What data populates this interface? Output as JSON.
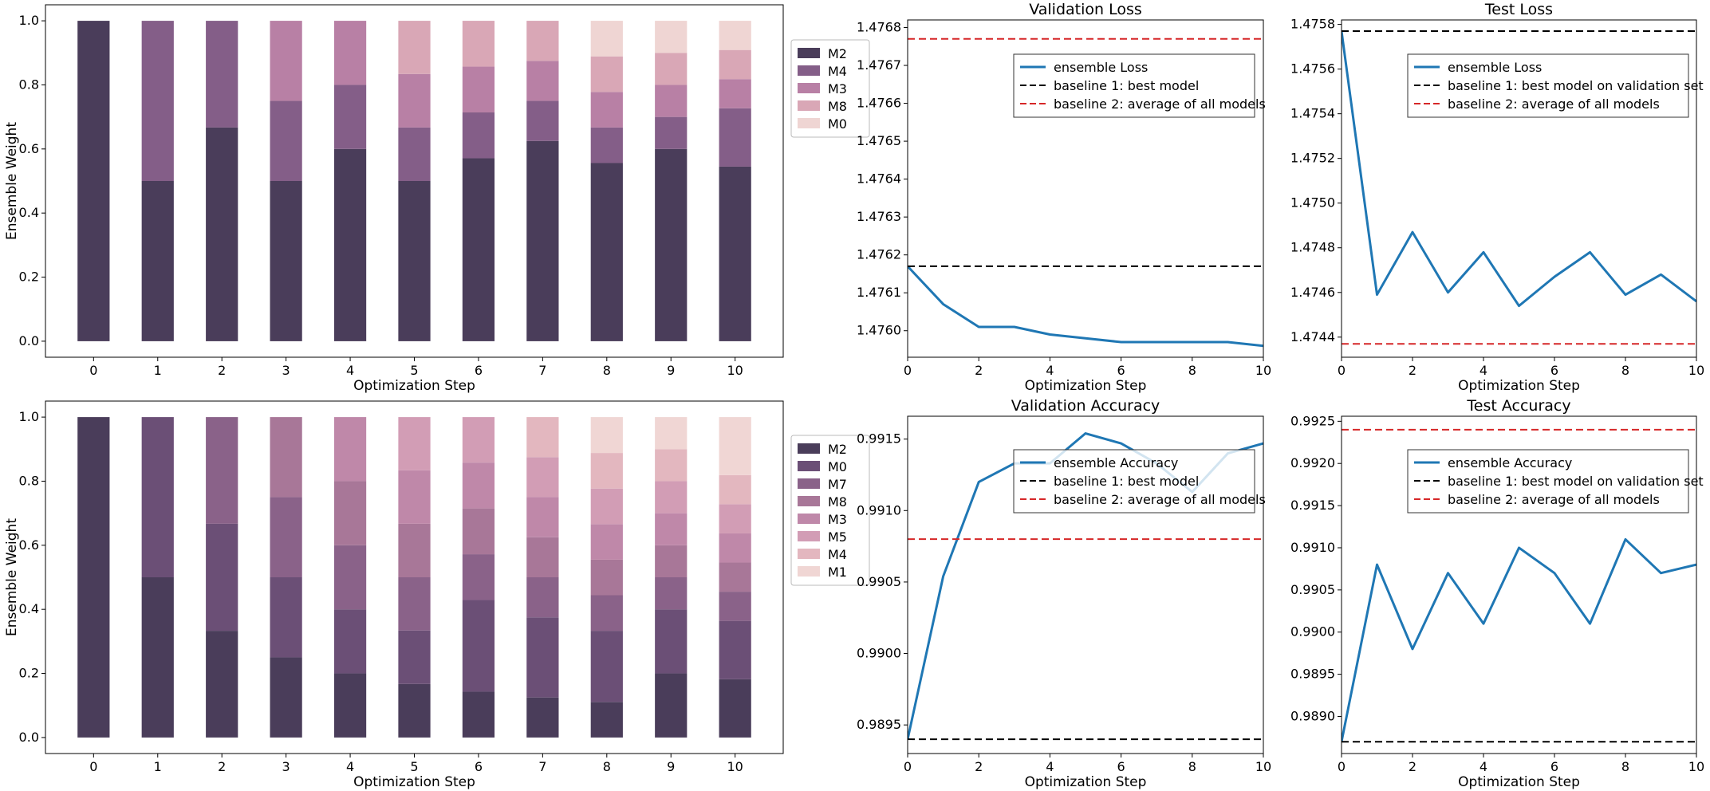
{
  "chart_data": [
    {
      "id": "weights_top",
      "type": "bar",
      "stacked": true,
      "title": "",
      "xlabel": "Optimization Step",
      "ylabel": "Ensemble Weight",
      "ylim": [
        0,
        1.0
      ],
      "categories": [
        "0",
        "1",
        "2",
        "3",
        "4",
        "5",
        "6",
        "7",
        "8",
        "9",
        "10"
      ],
      "yticks": [
        "0.0",
        "0.2",
        "0.4",
        "0.6",
        "0.8",
        "1.0"
      ],
      "legend_position": "outside-right",
      "series": [
        {
          "name": "M2",
          "color": "#4a3d5a",
          "values": [
            1.0,
            0.5,
            0.667,
            0.5,
            0.6,
            0.5,
            0.571,
            0.625,
            0.556,
            0.6,
            0.545
          ]
        },
        {
          "name": "M4",
          "color": "#845e88",
          "values": [
            0,
            0.5,
            0.333,
            0.25,
            0.2,
            0.167,
            0.143,
            0.125,
            0.111,
            0.1,
            0.182
          ]
        },
        {
          "name": "M3",
          "color": "#b880a5",
          "values": [
            0,
            0,
            0,
            0.25,
            0.2,
            0.167,
            0.143,
            0.125,
            0.111,
            0.1,
            0.091
          ]
        },
        {
          "name": "M8",
          "color": "#d9a7b6",
          "values": [
            0,
            0,
            0,
            0,
            0,
            0.166,
            0.143,
            0.125,
            0.111,
            0.1,
            0.091
          ]
        },
        {
          "name": "M0",
          "color": "#efd5d3",
          "values": [
            0,
            0,
            0,
            0,
            0,
            0,
            0,
            0,
            0.111,
            0.1,
            0.091
          ]
        }
      ]
    },
    {
      "id": "val_loss",
      "type": "line",
      "title": "Validation Loss",
      "xlabel": "Optimization Step",
      "ylabel": "",
      "xlim": [
        0,
        10
      ],
      "ylim": [
        1.47593,
        1.47682
      ],
      "xticks": [
        "0",
        "2",
        "4",
        "6",
        "8",
        "10"
      ],
      "yticks": [
        "1.4760",
        "1.4761",
        "1.4762",
        "1.4763",
        "1.4764",
        "1.4765",
        "1.4766",
        "1.4767",
        "1.4768"
      ],
      "legend_position": "upper-right",
      "series": [
        {
          "name": "ensemble Loss",
          "style": "solid",
          "color": "#1f77b4",
          "x": [
            0,
            1,
            2,
            3,
            4,
            5,
            6,
            7,
            8,
            9,
            10
          ],
          "y": [
            1.47617,
            1.47607,
            1.47601,
            1.47601,
            1.47599,
            1.47598,
            1.47597,
            1.47597,
            1.47597,
            1.47597,
            1.47596
          ]
        },
        {
          "name": "baseline 1: best model",
          "style": "dashed",
          "color": "#000000",
          "y_const": 1.47617
        },
        {
          "name": "baseline 2: average of all models",
          "style": "dashed",
          "color": "#d62728",
          "y_const": 1.47677
        }
      ]
    },
    {
      "id": "test_loss",
      "type": "line",
      "title": "Test Loss",
      "xlabel": "Optimization Step",
      "ylabel": "",
      "xlim": [
        0,
        10
      ],
      "ylim": [
        1.47431,
        1.47582
      ],
      "xticks": [
        "0",
        "2",
        "4",
        "6",
        "8",
        "10"
      ],
      "yticks": [
        "1.4744",
        "1.4746",
        "1.4748",
        "1.4750",
        "1.4752",
        "1.4754",
        "1.4756",
        "1.4758"
      ],
      "legend_position": "upper-right",
      "series": [
        {
          "name": "ensemble Loss",
          "style": "solid",
          "color": "#1f77b4",
          "x": [
            0,
            1,
            2,
            3,
            4,
            5,
            6,
            7,
            8,
            9,
            10
          ],
          "y": [
            1.47577,
            1.47459,
            1.47487,
            1.4746,
            1.47478,
            1.47454,
            1.47467,
            1.47478,
            1.47459,
            1.47468,
            1.47456
          ]
        },
        {
          "name": "baseline 1: best model on validation set",
          "style": "dashed",
          "color": "#000000",
          "y_const": 1.47577
        },
        {
          "name": "baseline 2: average of all models",
          "style": "dashed",
          "color": "#d62728",
          "y_const": 1.47437
        }
      ]
    },
    {
      "id": "weights_bottom",
      "type": "bar",
      "stacked": true,
      "title": "",
      "xlabel": "Optimization Step",
      "ylabel": "Ensemble Weight",
      "ylim": [
        0,
        1.0
      ],
      "categories": [
        "0",
        "1",
        "2",
        "3",
        "4",
        "5",
        "6",
        "7",
        "8",
        "9",
        "10"
      ],
      "yticks": [
        "0.0",
        "0.2",
        "0.4",
        "0.6",
        "0.8",
        "1.0"
      ],
      "legend_position": "outside-right",
      "series": [
        {
          "name": "M2",
          "color": "#4a3d5a",
          "values": [
            1.0,
            0.5,
            0.333,
            0.25,
            0.2,
            0.167,
            0.143,
            0.125,
            0.111,
            0.2,
            0.182
          ]
        },
        {
          "name": "M0",
          "color": "#6b4f76",
          "values": [
            0,
            0.5,
            0.334,
            0.25,
            0.2,
            0.167,
            0.286,
            0.25,
            0.222,
            0.2,
            0.182
          ]
        },
        {
          "name": "M7",
          "color": "#8a6289",
          "values": [
            0,
            0,
            0.333,
            0.25,
            0.2,
            0.166,
            0.143,
            0.125,
            0.111,
            0.1,
            0.091
          ]
        },
        {
          "name": "M8",
          "color": "#a87798",
          "values": [
            0,
            0,
            0,
            0.25,
            0.2,
            0.167,
            0.143,
            0.125,
            0.111,
            0.1,
            0.091
          ]
        },
        {
          "name": "M3",
          "color": "#bf88a9",
          "values": [
            0,
            0,
            0,
            0,
            0.2,
            0.167,
            0.143,
            0.125,
            0.111,
            0.1,
            0.091
          ]
        },
        {
          "name": "M5",
          "color": "#d29db5",
          "values": [
            0,
            0,
            0,
            0,
            0,
            0.166,
            0.142,
            0.125,
            0.111,
            0.1,
            0.091
          ]
        },
        {
          "name": "M4",
          "color": "#e3b7bf",
          "values": [
            0,
            0,
            0,
            0,
            0,
            0,
            0,
            0.125,
            0.111,
            0.1,
            0.091
          ]
        },
        {
          "name": "M1",
          "color": "#f0d6d4",
          "values": [
            0,
            0,
            0,
            0,
            0,
            0,
            0,
            0,
            0.112,
            0.1,
            0.181
          ]
        }
      ]
    },
    {
      "id": "val_acc",
      "type": "line",
      "title": "Validation Accuracy",
      "xlabel": "Optimization Step",
      "ylabel": "",
      "xlim": [
        0,
        10
      ],
      "ylim": [
        0.9893,
        0.99166
      ],
      "xticks": [
        "0",
        "2",
        "4",
        "6",
        "8",
        "10"
      ],
      "yticks": [
        "0.9895",
        "0.9900",
        "0.9905",
        "0.9910",
        "0.9915"
      ],
      "legend_position": "upper-right",
      "series": [
        {
          "name": "ensemble Accuracy",
          "style": "solid",
          "color": "#1f77b4",
          "x": [
            0,
            1,
            2,
            3,
            4,
            5,
            6,
            7,
            8,
            9,
            10
          ],
          "y": [
            0.9894,
            0.99054,
            0.9912,
            0.99133,
            0.99133,
            0.99154,
            0.99147,
            0.99133,
            0.99113,
            0.9914,
            0.99147
          ]
        },
        {
          "name": "baseline 1: best model",
          "style": "dashed",
          "color": "#000000",
          "y_const": 0.9894
        },
        {
          "name": "baseline 2: average of all models",
          "style": "dashed",
          "color": "#d62728",
          "y_const": 0.9908
        }
      ]
    },
    {
      "id": "test_acc",
      "type": "line",
      "title": "Test Accuracy",
      "xlabel": "Optimization Step",
      "ylabel": "",
      "xlim": [
        0,
        10
      ],
      "ylim": [
        0.98856,
        0.99256
      ],
      "xticks": [
        "0",
        "2",
        "4",
        "6",
        "8",
        "10"
      ],
      "yticks": [
        "0.9890",
        "0.9895",
        "0.9900",
        "0.9905",
        "0.9910",
        "0.9915",
        "0.9920",
        "0.9925"
      ],
      "legend_position": "upper-right",
      "series": [
        {
          "name": "ensemble Accuracy",
          "style": "solid",
          "color": "#1f77b4",
          "x": [
            0,
            1,
            2,
            3,
            4,
            5,
            6,
            7,
            8,
            9,
            10
          ],
          "y": [
            0.9887,
            0.9908,
            0.9898,
            0.9907,
            0.9901,
            0.991,
            0.9907,
            0.9901,
            0.9911,
            0.9907,
            0.9908
          ]
        },
        {
          "name": "baseline 1: best model on validation set",
          "style": "dashed",
          "color": "#000000",
          "y_const": 0.9887
        },
        {
          "name": "baseline 2: average of all models",
          "style": "dashed",
          "color": "#d62728",
          "y_const": 0.9924
        }
      ]
    }
  ]
}
